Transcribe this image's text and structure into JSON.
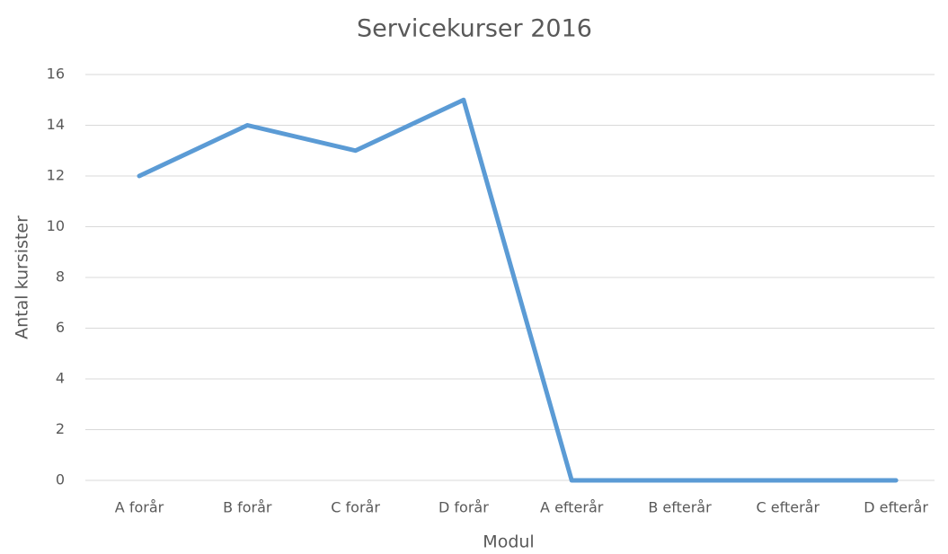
{
  "chart_data": {
    "type": "line",
    "title": "Servicekurser 2016",
    "x_label": "Modul",
    "y_label": "Antal kursister",
    "categories": [
      "A forår",
      "B forår",
      "C forår",
      "D forår",
      "A efterår",
      "B efterår",
      "C efterår",
      "D efterår"
    ],
    "values": [
      12,
      14,
      13,
      15,
      0,
      0,
      0,
      0
    ],
    "color": "#5b9bd5",
    "ylim": [
      0,
      16
    ],
    "yticks": [
      0,
      2,
      4,
      6,
      8,
      10,
      12,
      14,
      16
    ],
    "grid": true
  }
}
